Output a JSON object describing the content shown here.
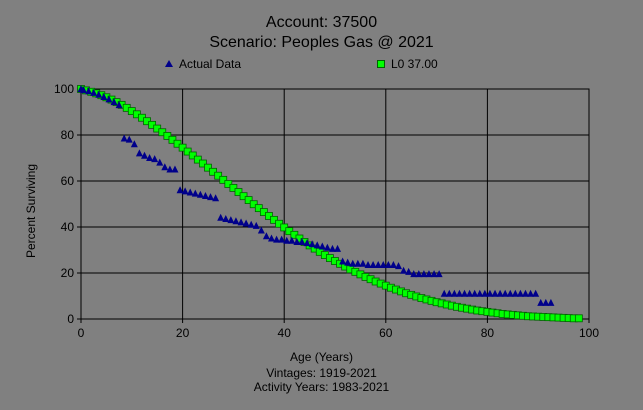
{
  "colors": {
    "background": "#808080",
    "plot_border": "#000000",
    "grid": "#000000",
    "actual_marker": "#00008b",
    "fit_marker": "#00ff00",
    "fit_marker_border": "#006400"
  },
  "chart_data": {
    "type": "scatter",
    "title": "Account: 37500",
    "subtitle": "Scenario: Peoples Gas @ 2021",
    "xlabel": "Age (Years)",
    "ylabel": "Percent Surviving",
    "footer": [
      "Vintages: 1919-2021",
      "Activity Years: 1983-2021"
    ],
    "xlim": [
      0,
      100
    ],
    "ylim": [
      0,
      100
    ],
    "xticks": [
      0,
      20,
      40,
      60,
      80,
      100
    ],
    "yticks": [
      0,
      20,
      40,
      60,
      80,
      100
    ],
    "grid": true,
    "legend_placement": "top",
    "series": [
      {
        "name": "Actual Data",
        "marker": "triangle",
        "x": [
          0,
          0.5,
          1.5,
          2.5,
          3.5,
          4.5,
          5.5,
          6.5,
          7.5,
          8.5,
          9.5,
          10.5,
          11.5,
          12.5,
          13.5,
          14.5,
          15.5,
          16.5,
          17.5,
          18.5,
          19.5,
          20.5,
          21.5,
          22.5,
          23.5,
          24.5,
          25.5,
          26.5,
          27.5,
          28.5,
          29.5,
          30.5,
          31.5,
          32.5,
          33.5,
          34.5,
          35.5,
          36.5,
          37.5,
          38.5,
          39.5,
          40.5,
          41.5,
          42.5,
          43.5,
          44.5,
          45.5,
          46.5,
          47.5,
          48.5,
          49.5,
          50.5,
          51.5,
          52.5,
          53.5,
          54.5,
          55.5,
          56.5,
          57.5,
          58.5,
          59.5,
          60.5,
          61.5,
          62.5,
          63.5,
          64.5,
          65.5,
          66.5,
          67.5,
          68.5,
          69.5,
          70.5,
          71.5,
          72.5,
          73.5,
          74.5,
          75.5,
          76.5,
          77.5,
          78.5,
          79.5,
          80.5,
          81.5,
          82.5,
          83.5,
          84.5,
          85.5,
          86.5,
          87.5,
          88.5,
          89.5,
          90.5,
          91.5,
          92.5
        ],
        "y": [
          100,
          99.5,
          99,
          98.3,
          97.5,
          96.5,
          95.5,
          94.3,
          93,
          78.5,
          78,
          76,
          72,
          71,
          70,
          69.5,
          68,
          66,
          65,
          65,
          56,
          55.5,
          55,
          54.5,
          54,
          53.5,
          53,
          52.5,
          44,
          43.5,
          43,
          42.5,
          42,
          41.5,
          41,
          40.5,
          38.5,
          36,
          35,
          34.5,
          34.5,
          34,
          34,
          33.5,
          33.5,
          33,
          32.5,
          32,
          31.5,
          31,
          30.5,
          30.5,
          25,
          24.5,
          24,
          24,
          24,
          23.5,
          23.5,
          23.5,
          23.5,
          23.5,
          23.5,
          23,
          21,
          20.5,
          19.5,
          19.5,
          19.5,
          19.5,
          19.5,
          19.5,
          11,
          11,
          11,
          11,
          11,
          11,
          11,
          11,
          11,
          11,
          11,
          11,
          11,
          11,
          11,
          11,
          11,
          11,
          11,
          7,
          7,
          7
        ]
      },
      {
        "name": "L0 37.00",
        "marker": "square",
        "x": [
          0,
          1,
          2,
          3,
          4,
          5,
          6,
          7,
          8,
          9,
          10,
          11,
          12,
          13,
          14,
          15,
          16,
          17,
          18,
          19,
          20,
          21,
          22,
          23,
          24,
          25,
          26,
          27,
          28,
          29,
          30,
          31,
          32,
          33,
          34,
          35,
          36,
          37,
          38,
          39,
          40,
          41,
          42,
          43,
          44,
          45,
          46,
          47,
          48,
          49,
          50,
          51,
          52,
          53,
          54,
          55,
          56,
          57,
          58,
          59,
          60,
          61,
          62,
          63,
          64,
          65,
          66,
          67,
          68,
          69,
          70,
          71,
          72,
          73,
          74,
          75,
          76,
          77,
          78,
          79,
          80,
          81,
          82,
          83,
          84,
          85,
          86,
          87,
          88,
          89,
          90,
          91,
          92,
          93,
          94,
          95,
          96,
          97,
          98
        ],
        "y": [
          100,
          99.4,
          98.8,
          98.1,
          97.3,
          96.4,
          95.4,
          94.3,
          93.1,
          91.8,
          90.4,
          89,
          87.5,
          86,
          84.4,
          82.8,
          81.2,
          79.6,
          77.9,
          76.2,
          74.5,
          72.8,
          71.1,
          69.3,
          67.6,
          65.8,
          64,
          62.3,
          60.5,
          58.7,
          57,
          55.2,
          53.4,
          51.7,
          49.9,
          48.2,
          46.5,
          44.8,
          43.1,
          41.4,
          39.8,
          38.2,
          36.6,
          35,
          33.5,
          32,
          30.6,
          29.2,
          27.8,
          26.5,
          25.2,
          24,
          22.8,
          21.6,
          20.5,
          19.4,
          18.3,
          17.3,
          16.3,
          15.4,
          14.5,
          13.6,
          12.8,
          12,
          11.2,
          10.5,
          9.8,
          9.1,
          8.5,
          7.9,
          7.3,
          6.8,
          6.3,
          5.8,
          5.3,
          4.9,
          4.5,
          4.1,
          3.7,
          3.4,
          3.1,
          2.8,
          2.5,
          2.2,
          2,
          1.8,
          1.6,
          1.4,
          1.2,
          1.1,
          1,
          0.9,
          0.8,
          0.7,
          0.6,
          0.5,
          0.4,
          0.3,
          0.3
        ]
      }
    ]
  }
}
